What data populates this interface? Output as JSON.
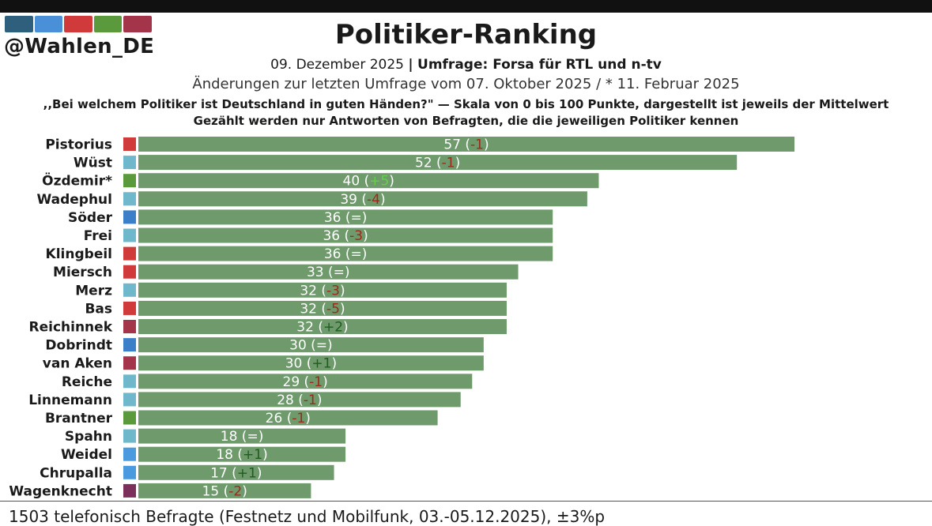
{
  "header": {
    "handle": "@Wahlen_DE",
    "logo_colors": [
      "#2e5f7d",
      "#4a90d9",
      "#d03a3a",
      "#5a9a3c",
      "#a3344a"
    ],
    "title": "Politiker-Ranking",
    "date": "09. Dezember 2025",
    "separator": "|",
    "poll": "Umfrage: Forsa für RTL und n-tv",
    "changes_note": "Änderungen zur letzten Umfrage vom 07. Oktober 2025 / * 11. Februar 2025",
    "question": ",,Bei welchem Politiker ist Deutschland in guten Händen?\" — Skala von 0 bis 100 Punkte, dargestellt ist jeweils der Mittelwert",
    "note": "Gezählt werden nur Antworten von Befragten, die die jeweiligen Politiker kennen"
  },
  "chart_data": {
    "type": "bar",
    "orientation": "horizontal",
    "title": "Politiker-Ranking",
    "xlim": [
      0,
      57
    ],
    "bar_color": "#6e9a6c",
    "change_colors": {
      "negative": "#9b2a1a",
      "positive_large": "#66d04a",
      "positive": "#1f5c1f",
      "neutral": "#ffffff"
    },
    "categories": [
      "Pistorius",
      "Wüst",
      "Özdemir*",
      "Wadephul",
      "Söder",
      "Frei",
      "Klingbeil",
      "Miersch",
      "Merz",
      "Bas",
      "Reichinnek",
      "Dobrindt",
      "van Aken",
      "Reiche",
      "Linnemann",
      "Brantner",
      "Spahn",
      "Weidel",
      "Chrupalla",
      "Wagenknecht"
    ],
    "values": [
      57,
      52,
      40,
      39,
      36,
      36,
      36,
      33,
      32,
      32,
      32,
      30,
      30,
      29,
      28,
      26,
      18,
      18,
      17,
      15
    ],
    "changes": [
      "-1",
      "-1",
      "+5",
      "-4",
      "=",
      "-3",
      "=",
      "=",
      "-3",
      "-5",
      "+2",
      "=",
      "+1",
      "-1",
      "-1",
      "-1",
      "=",
      "+1",
      "+1",
      "-2"
    ],
    "party_colors": [
      "#d03a3a",
      "#6fb8cc",
      "#5a9a3c",
      "#6fb8cc",
      "#3a7fc8",
      "#6fb8cc",
      "#d03a3a",
      "#d03a3a",
      "#6fb8cc",
      "#d03a3a",
      "#a3344a",
      "#3a7fc8",
      "#a3344a",
      "#6fb8cc",
      "#6fb8cc",
      "#5a9a3c",
      "#6fb8cc",
      "#4a9ae0",
      "#4a9ae0",
      "#7b2f5a"
    ]
  },
  "footer": {
    "text": "1503 telefonisch Befragte (Festnetz und Mobilfunk, 03.-05.12.2025), ±3%p"
  }
}
